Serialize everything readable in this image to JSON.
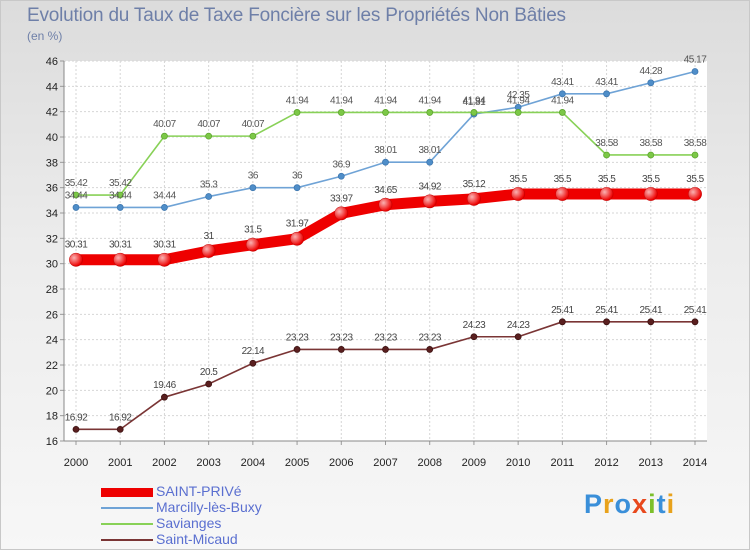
{
  "chart_data": {
    "type": "line",
    "title": "Evolution du Taux de Taxe Foncière sur les Propriétés Non Bâties",
    "subtitle": "(en %)",
    "x": [
      "2000",
      "2001",
      "2002",
      "2003",
      "2004",
      "2005",
      "2006",
      "2007",
      "2008",
      "2009",
      "2010",
      "2011",
      "2012",
      "2013",
      "2014"
    ],
    "ylim": [
      16,
      46
    ],
    "yticks": [
      16,
      18,
      20,
      22,
      24,
      26,
      28,
      30,
      32,
      34,
      36,
      38,
      40,
      42,
      44,
      46
    ],
    "grid": true,
    "legend_position": "bottom-left",
    "series": [
      {
        "name": "SAINT-PRIVé",
        "color": "#ee0000",
        "values": [
          30.31,
          30.31,
          30.31,
          31,
          31.5,
          31.97,
          33.97,
          34.65,
          34.92,
          35.12,
          35.5,
          35.5,
          35.5,
          35.5,
          35.5
        ],
        "labels": [
          "30.31",
          "30.31",
          "30.31",
          "31",
          "31.5",
          "31.97",
          "33.97",
          "34.65",
          "34.92",
          "35.12",
          "35.5",
          "35.5",
          "35.5",
          "35.5",
          "35.5"
        ]
      },
      {
        "name": "Marcilly-lès-Buxy",
        "color": "#6fa3d6",
        "values": [
          34.44,
          34.44,
          34.44,
          35.3,
          36,
          36,
          36.9,
          38.01,
          38.01,
          41.81,
          42.35,
          43.41,
          43.41,
          44.28,
          45.17
        ],
        "labels": [
          "34.44",
          "34.44",
          "34.44",
          "35.3",
          "36",
          "36",
          "36.9",
          "38.01",
          "38.01",
          "41.81",
          "42.35",
          "43.41",
          "43.41",
          "44.28",
          "45.17"
        ]
      },
      {
        "name": "Savianges",
        "color": "#88d157",
        "values": [
          35.42,
          35.42,
          40.07,
          40.07,
          40.07,
          41.94,
          41.94,
          41.94,
          41.94,
          41.94,
          41.94,
          41.94,
          38.58,
          38.58,
          38.58
        ],
        "labels": [
          "35.42",
          "35.42",
          "40.07",
          "40.07",
          "40.07",
          "41.94",
          "41.94",
          "41.94",
          "41.94",
          "41.94",
          "41.94",
          "41.94",
          "38.58",
          "38.58",
          "38.58"
        ]
      },
      {
        "name": "Saint-Micaud",
        "color": "#7a3535",
        "values": [
          16.92,
          16.92,
          19.46,
          20.5,
          22.14,
          23.23,
          23.23,
          23.23,
          23.23,
          24.23,
          24.23,
          25.41,
          25.41,
          25.41,
          25.41
        ],
        "labels": [
          "16.92",
          "16.92",
          "19.46",
          "20.5",
          "22.14",
          "23.23",
          "23.23",
          "23.23",
          "23.23",
          "24.23",
          "24.23",
          "25.41",
          "25.41",
          "25.41",
          "25.41"
        ]
      }
    ]
  },
  "logo": {
    "text": "Proxiti"
  }
}
